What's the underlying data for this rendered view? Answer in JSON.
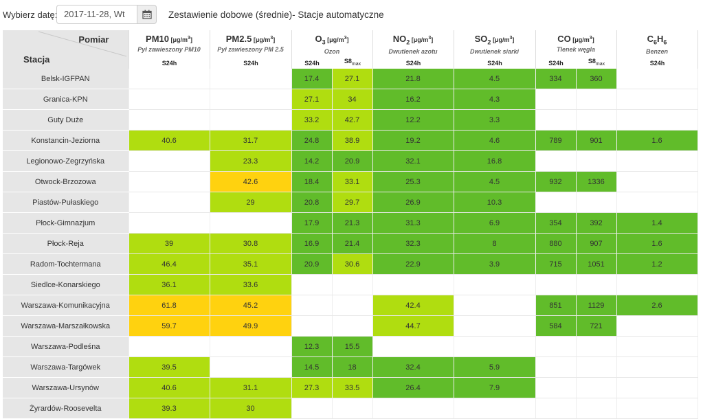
{
  "header": {
    "date_label": "Wybierz datę:",
    "date_value": "2017-11-28, Wt",
    "calendar_icon": "calendar-icon",
    "title": "Zestawienie dobowe (średnie)- Stacje automatyczne"
  },
  "table": {
    "corner_top": "Pomiar",
    "corner_bottom": "Stacja",
    "pollutants": [
      {
        "name": "PM10",
        "sub": "",
        "unit": "[μg/m³]",
        "desc": "Pył zawieszony PM10",
        "cols": [
          "S24h"
        ]
      },
      {
        "name": "PM2.5",
        "sub": "",
        "unit": "[μg/m³]",
        "desc": "Pył zawieszony PM 2.5",
        "cols": [
          "S24h"
        ]
      },
      {
        "name": "O",
        "sub": "3",
        "unit": "[μg/m³]",
        "desc": "Ozon",
        "cols": [
          "S24h",
          "S8max"
        ]
      },
      {
        "name": "NO",
        "sub": "2",
        "unit": "[μg/m³]",
        "desc": "Dwutlenek azotu",
        "cols": [
          "S24h"
        ]
      },
      {
        "name": "SO",
        "sub": "2",
        "unit": "[μg/m³]",
        "desc": "Dwutlenek siarki",
        "cols": [
          "S24h"
        ]
      },
      {
        "name": "CO",
        "sub": "",
        "unit": "[μg/m³]",
        "desc": "Tlenek węgla",
        "cols": [
          "S24h",
          "S8max"
        ]
      },
      {
        "name": "C6H6",
        "sub": "",
        "unit": "",
        "desc": "Benzen",
        "cols": [
          "S24h"
        ]
      }
    ],
    "legend_colors": {
      "very_good": "#61bc2a",
      "good": "#b0dd10",
      "moderate": "#ffd20f"
    },
    "rows": [
      {
        "station": "Belsk-IGFPAN",
        "cells": [
          [
            "",
            0
          ],
          [
            "",
            0
          ],
          [
            "17.4",
            1
          ],
          [
            "27.1",
            2
          ],
          [
            "21.8",
            1
          ],
          [
            "4.5",
            1
          ],
          [
            "334",
            1
          ],
          [
            "360",
            1
          ],
          [
            "",
            0
          ]
        ]
      },
      {
        "station": "Granica-KPN",
        "cells": [
          [
            "",
            0
          ],
          [
            "",
            0
          ],
          [
            "27.1",
            2
          ],
          [
            "34",
            2
          ],
          [
            "16.2",
            1
          ],
          [
            "4.3",
            1
          ],
          [
            "",
            0
          ],
          [
            "",
            0
          ],
          [
            "",
            0
          ]
        ]
      },
      {
        "station": "Guty Duże",
        "cells": [
          [
            "",
            0
          ],
          [
            "",
            0
          ],
          [
            "33.2",
            2
          ],
          [
            "42.7",
            2
          ],
          [
            "12.2",
            1
          ],
          [
            "3.3",
            1
          ],
          [
            "",
            0
          ],
          [
            "",
            0
          ],
          [
            "",
            0
          ]
        ]
      },
      {
        "station": "Konstancin-Jeziorna",
        "cells": [
          [
            "40.6",
            2
          ],
          [
            "31.7",
            2
          ],
          [
            "24.8",
            1
          ],
          [
            "38.9",
            2
          ],
          [
            "19.2",
            1
          ],
          [
            "4.6",
            1
          ],
          [
            "789",
            1
          ],
          [
            "901",
            1
          ],
          [
            "1.6",
            1
          ]
        ]
      },
      {
        "station": "Legionowo-Zegrzyńska",
        "cells": [
          [
            "",
            0
          ],
          [
            "23.3",
            2
          ],
          [
            "14.2",
            1
          ],
          [
            "20.9",
            1
          ],
          [
            "32.1",
            1
          ],
          [
            "16.8",
            1
          ],
          [
            "",
            0
          ],
          [
            "",
            0
          ],
          [
            "",
            0
          ]
        ]
      },
      {
        "station": "Otwock-Brzozowa",
        "cells": [
          [
            "",
            0
          ],
          [
            "42.6",
            3
          ],
          [
            "18.4",
            1
          ],
          [
            "33.1",
            2
          ],
          [
            "25.3",
            1
          ],
          [
            "4.5",
            1
          ],
          [
            "932",
            1
          ],
          [
            "1336",
            1
          ],
          [
            "",
            0
          ]
        ]
      },
      {
        "station": "Piastów-Pułaskiego",
        "cells": [
          [
            "",
            0
          ],
          [
            "29",
            2
          ],
          [
            "20.8",
            1
          ],
          [
            "29.7",
            2
          ],
          [
            "26.9",
            1
          ],
          [
            "10.3",
            1
          ],
          [
            "",
            0
          ],
          [
            "",
            0
          ],
          [
            "",
            0
          ]
        ]
      },
      {
        "station": "Płock-Gimnazjum",
        "cells": [
          [
            "",
            0
          ],
          [
            "",
            0
          ],
          [
            "17.9",
            1
          ],
          [
            "21.3",
            1
          ],
          [
            "31.3",
            1
          ],
          [
            "6.9",
            1
          ],
          [
            "354",
            1
          ],
          [
            "392",
            1
          ],
          [
            "1.4",
            1
          ]
        ]
      },
      {
        "station": "Płock-Reja",
        "cells": [
          [
            "39",
            2
          ],
          [
            "30.8",
            2
          ],
          [
            "16.9",
            1
          ],
          [
            "21.4",
            1
          ],
          [
            "32.3",
            1
          ],
          [
            "8",
            1
          ],
          [
            "880",
            1
          ],
          [
            "907",
            1
          ],
          [
            "1.6",
            1
          ]
        ]
      },
      {
        "station": "Radom-Tochtermana",
        "cells": [
          [
            "46.4",
            2
          ],
          [
            "35.1",
            2
          ],
          [
            "20.9",
            1
          ],
          [
            "30.6",
            2
          ],
          [
            "22.9",
            1
          ],
          [
            "3.9",
            1
          ],
          [
            "715",
            1
          ],
          [
            "1051",
            1
          ],
          [
            "1.2",
            1
          ]
        ]
      },
      {
        "station": "Siedlce-Konarskiego",
        "cells": [
          [
            "36.1",
            2
          ],
          [
            "33.6",
            2
          ],
          [
            "",
            0
          ],
          [
            "",
            0
          ],
          [
            "",
            0
          ],
          [
            "",
            0
          ],
          [
            "",
            0
          ],
          [
            "",
            0
          ],
          [
            "",
            0
          ]
        ]
      },
      {
        "station": "Warszawa-Komunikacyjna",
        "cells": [
          [
            "61.8",
            3
          ],
          [
            "45.2",
            3
          ],
          [
            "",
            0
          ],
          [
            "",
            0
          ],
          [
            "42.4",
            2
          ],
          [
            "",
            0
          ],
          [
            "851",
            1
          ],
          [
            "1129",
            1
          ],
          [
            "2.6",
            1
          ]
        ]
      },
      {
        "station": "Warszawa-Marszałkowska",
        "cells": [
          [
            "59.7",
            3
          ],
          [
            "49.9",
            3
          ],
          [
            "",
            0
          ],
          [
            "",
            0
          ],
          [
            "44.7",
            2
          ],
          [
            "",
            0
          ],
          [
            "584",
            1
          ],
          [
            "721",
            1
          ],
          [
            "",
            0
          ]
        ]
      },
      {
        "station": "Warszawa-Podleśna",
        "cells": [
          [
            "",
            0
          ],
          [
            "",
            0
          ],
          [
            "12.3",
            1
          ],
          [
            "15.5",
            1
          ],
          [
            "",
            0
          ],
          [
            "",
            0
          ],
          [
            "",
            0
          ],
          [
            "",
            0
          ],
          [
            "",
            0
          ]
        ]
      },
      {
        "station": "Warszawa-Targówek",
        "cells": [
          [
            "39.5",
            2
          ],
          [
            "",
            0
          ],
          [
            "14.5",
            1
          ],
          [
            "18",
            1
          ],
          [
            "32.4",
            1
          ],
          [
            "5.9",
            1
          ],
          [
            "",
            0
          ],
          [
            "",
            0
          ],
          [
            "",
            0
          ]
        ]
      },
      {
        "station": "Warszawa-Ursynów",
        "cells": [
          [
            "40.6",
            2
          ],
          [
            "31.1",
            2
          ],
          [
            "27.3",
            2
          ],
          [
            "33.5",
            2
          ],
          [
            "26.4",
            1
          ],
          [
            "7.9",
            1
          ],
          [
            "",
            0
          ],
          [
            "",
            0
          ],
          [
            "",
            0
          ]
        ]
      },
      {
        "station": "Żyrardów-Roosevelta",
        "cells": [
          [
            "39.3",
            2
          ],
          [
            "30",
            2
          ],
          [
            "",
            0
          ],
          [
            "",
            0
          ],
          [
            "",
            0
          ],
          [
            "",
            0
          ],
          [
            "",
            0
          ],
          [
            "",
            0
          ],
          [
            "",
            0
          ]
        ]
      }
    ]
  }
}
